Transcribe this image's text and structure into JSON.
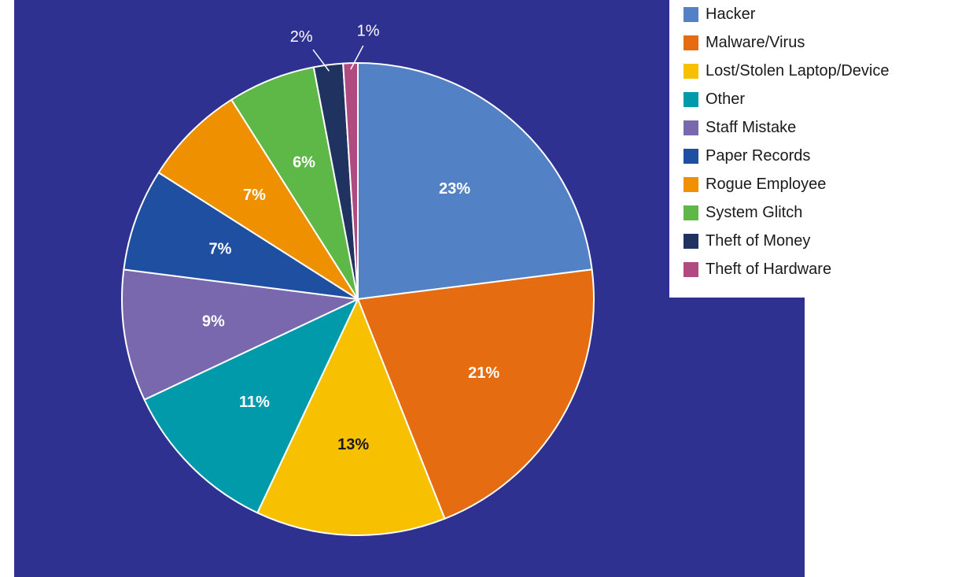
{
  "chart_data": {
    "type": "pie",
    "title": "",
    "slices": [
      {
        "name": "Hacker",
        "value": 23,
        "label": "23%",
        "color": "#5282c5"
      },
      {
        "name": "Malware/Virus",
        "value": 21,
        "label": "21%",
        "color": "#e56c10"
      },
      {
        "name": "Lost/Stolen Laptop/Device",
        "value": 13,
        "label": "13%",
        "color": "#f7c000"
      },
      {
        "name": "Other",
        "value": 11,
        "label": "11%",
        "color": "#009aaa"
      },
      {
        "name": "Staff Mistake",
        "value": 9,
        "label": "9%",
        "color": "#7a68ae"
      },
      {
        "name": "Paper Records",
        "value": 7,
        "label": "7%",
        "color": "#1f4fa0"
      },
      {
        "name": "Rogue Employee",
        "value": 7,
        "label": "7%",
        "color": "#ee9000"
      },
      {
        "name": "System Glitch",
        "value": 6,
        "label": "6%",
        "color": "#5db847"
      },
      {
        "name": "Theft of Money",
        "value": 2,
        "label": "2%",
        "color": "#1f3260"
      },
      {
        "name": "Theft of Hardware",
        "value": 1,
        "label": "1%",
        "color": "#b04a80"
      }
    ],
    "legend_placement": "top-right",
    "background_color": "#2e3190"
  }
}
